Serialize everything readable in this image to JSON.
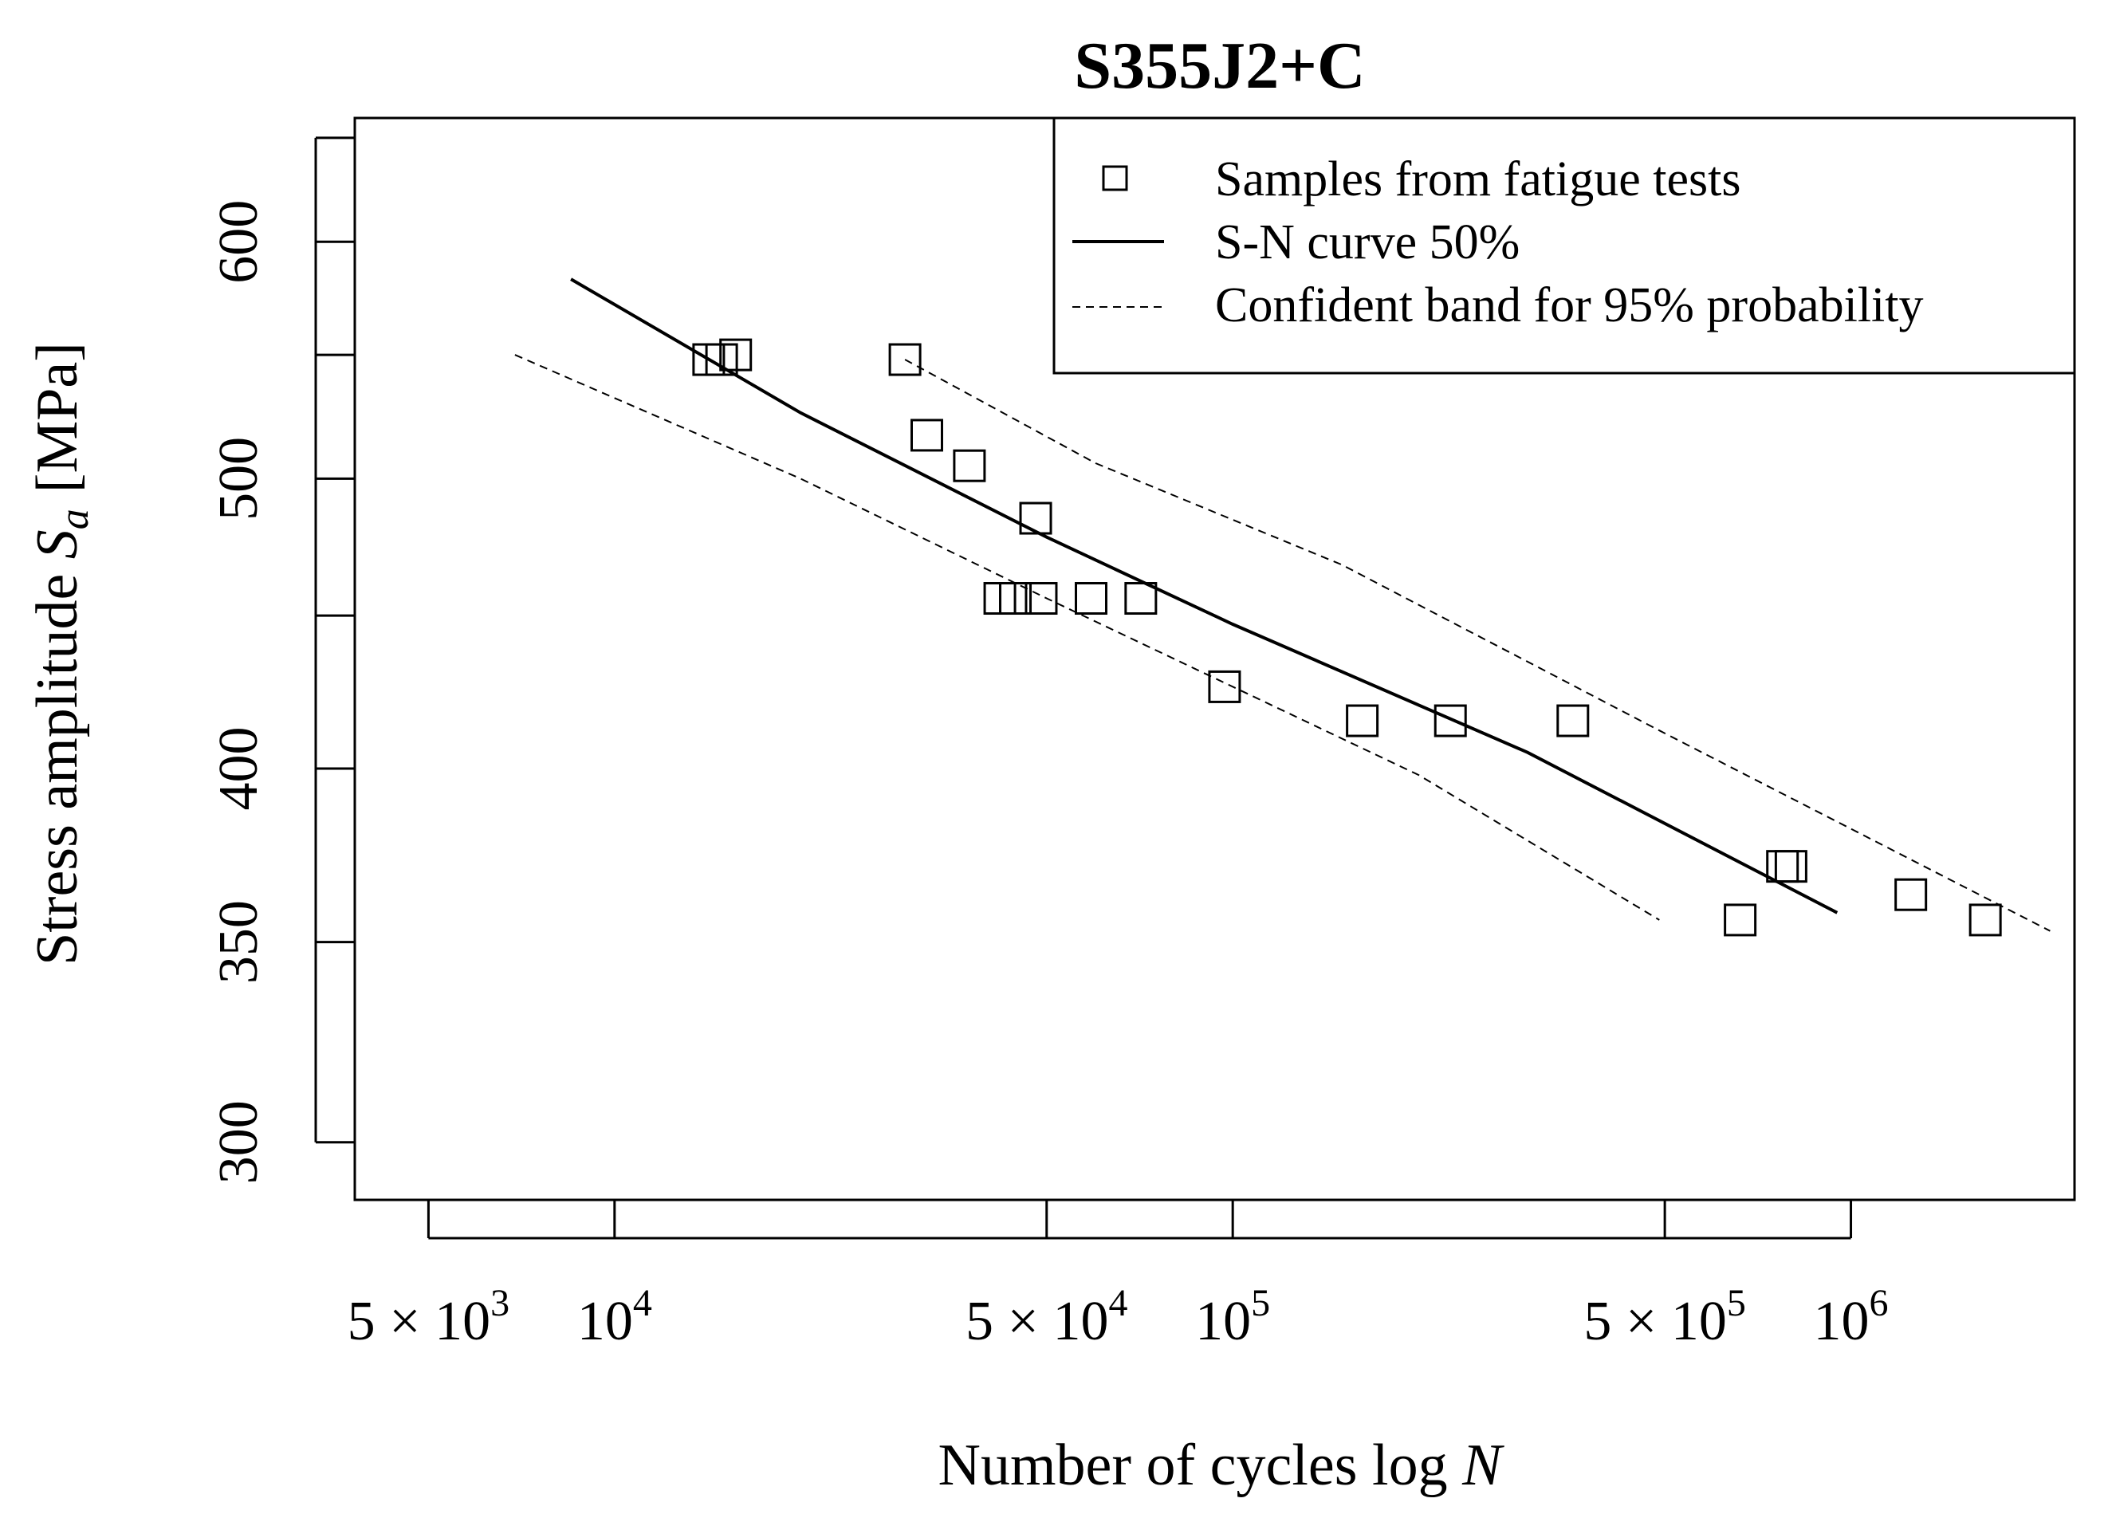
{
  "chart_data": {
    "type": "scatter",
    "title": "S355J2+C",
    "xlabel_prefix": "Number of cycles log ",
    "xlabel_var": "N",
    "ylabel_prefix": "Stress amplitude ",
    "ylabel_var": "S",
    "ylabel_sub": "a",
    "ylabel_unit": "[MPa]",
    "x_scale": "log",
    "y_scale": "log",
    "xlim": [
      3800,
      2300000
    ],
    "ylim": [
      287,
      660
    ],
    "x_ticks": [
      {
        "value": 5000,
        "mantissa": "5",
        "times": "×",
        "base": "10",
        "exp": "3"
      },
      {
        "value": 10000,
        "mantissa": "",
        "times": "",
        "base": "10",
        "exp": "4"
      },
      {
        "value": 50000,
        "mantissa": "5",
        "times": "×",
        "base": "10",
        "exp": "4"
      },
      {
        "value": 100000,
        "mantissa": "",
        "times": "",
        "base": "10",
        "exp": "5"
      },
      {
        "value": 500000,
        "mantissa": "5",
        "times": "×",
        "base": "10",
        "exp": "5"
      },
      {
        "value": 1000000,
        "mantissa": "",
        "times": "",
        "base": "10",
        "exp": "6"
      }
    ],
    "y_ticks": [
      {
        "value": 300,
        "label": "300"
      },
      {
        "value": 350,
        "label": "350"
      },
      {
        "value": 400,
        "label": "400"
      },
      {
        "value": 450,
        "label": ""
      },
      {
        "value": 500,
        "label": "500"
      },
      {
        "value": 550,
        "label": ""
      },
      {
        "value": 600,
        "label": "600"
      },
      {
        "value": 650,
        "label": ""
      }
    ],
    "legend": {
      "position": "top-right",
      "entries": [
        {
          "label": "Samples from fatigue tests",
          "symbol": "square"
        },
        {
          "label": "S-N curve 50%",
          "symbol": "solid-line"
        },
        {
          "label": "Confident band for 95% probability",
          "symbol": "dashed-line"
        }
      ]
    },
    "series": [
      {
        "name": "Samples from fatigue tests",
        "kind": "points",
        "points": [
          {
            "x": 14200,
            "y": 548
          },
          {
            "x": 14900,
            "y": 548
          },
          {
            "x": 15700,
            "y": 550
          },
          {
            "x": 29500,
            "y": 548
          },
          {
            "x": 32000,
            "y": 517
          },
          {
            "x": 37500,
            "y": 505
          },
          {
            "x": 42000,
            "y": 456
          },
          {
            "x": 44500,
            "y": 456
          },
          {
            "x": 48000,
            "y": 485
          },
          {
            "x": 49000,
            "y": 456
          },
          {
            "x": 59000,
            "y": 456
          },
          {
            "x": 71000,
            "y": 456
          },
          {
            "x": 97000,
            "y": 426
          },
          {
            "x": 162000,
            "y": 415
          },
          {
            "x": 225000,
            "y": 415
          },
          {
            "x": 355000,
            "y": 415
          },
          {
            "x": 662000,
            "y": 356
          },
          {
            "x": 775000,
            "y": 371
          },
          {
            "x": 800000,
            "y": 371
          },
          {
            "x": 1250000,
            "y": 363
          },
          {
            "x": 1650000,
            "y": 356
          }
        ]
      },
      {
        "name": "S-N curve 50%",
        "kind": "line",
        "style": "solid",
        "points": [
          {
            "x": 8500,
            "y": 583
          },
          {
            "x": 20000,
            "y": 526
          },
          {
            "x": 50000,
            "y": 478
          },
          {
            "x": 100000,
            "y": 447
          },
          {
            "x": 300000,
            "y": 405
          },
          {
            "x": 950000,
            "y": 358
          }
        ]
      },
      {
        "name": "Confident band for 95% probability (upper)",
        "kind": "line",
        "style": "dashed",
        "points": [
          {
            "x": 29500,
            "y": 548
          },
          {
            "x": 60000,
            "y": 506
          },
          {
            "x": 150000,
            "y": 468
          },
          {
            "x": 500000,
            "y": 411
          },
          {
            "x": 2100000,
            "y": 353
          }
        ]
      },
      {
        "name": "Confident band for 95% probability (lower)",
        "kind": "line",
        "style": "dashed",
        "points": [
          {
            "x": 6900,
            "y": 550
          },
          {
            "x": 20000,
            "y": 500
          },
          {
            "x": 50000,
            "y": 456
          },
          {
            "x": 200000,
            "y": 398
          },
          {
            "x": 490000,
            "y": 356
          }
        ]
      }
    ]
  }
}
